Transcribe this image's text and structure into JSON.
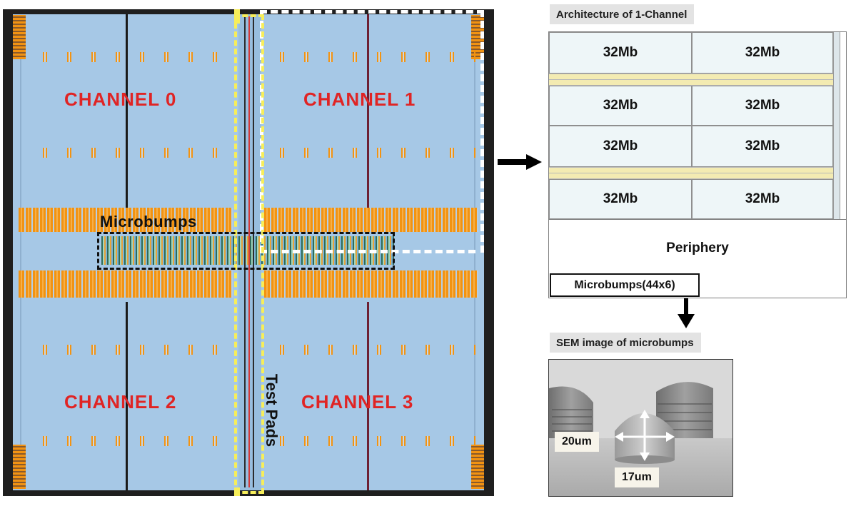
{
  "die": {
    "channels": [
      "CHANNEL 0",
      "CHANNEL 1",
      "CHANNEL 2",
      "CHANNEL 3"
    ],
    "microbumps_label": "Microbumps",
    "test_pads_label": "Test Pads"
  },
  "architecture": {
    "title": "Architecture of 1-Channel",
    "banks": [
      "32Mb",
      "32Mb",
      "32Mb",
      "32Mb",
      "32Mb",
      "32Mb",
      "32Mb",
      "32Mb"
    ],
    "periphery_label": "Periphery",
    "microbumps_label": "Microbumps(44x6)"
  },
  "sem": {
    "title": "SEM image of microbumps",
    "dim_height": "20um",
    "dim_width": "17um"
  },
  "colors": {
    "channel_text": "#e02424",
    "die_fill": "#a6c8e6",
    "bump_orange": "#f29312",
    "test_pad_yellow": "#f7ee5a"
  }
}
